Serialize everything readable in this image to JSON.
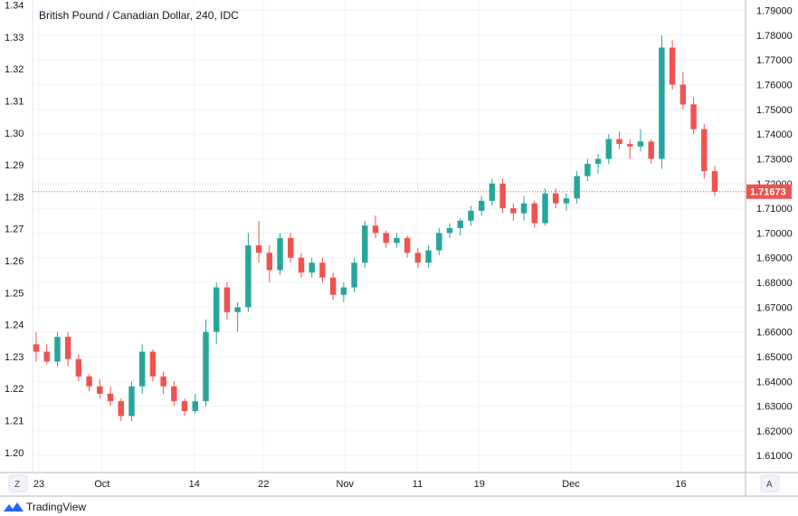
{
  "chart_data": {
    "type": "candlestick",
    "title": "British Pound / Canadian Dollar, 240, IDC",
    "x_tick_labels": [
      "23",
      "Oct",
      "14",
      "22",
      "Nov",
      "11",
      "19",
      "Dec",
      "16"
    ],
    "left_axis": {
      "ticks": [
        "1.34",
        "1.33",
        "1.32",
        "1.31",
        "1.30",
        "1.29",
        "1.28",
        "1.27",
        "1.26",
        "1.25",
        "1.24",
        "1.23",
        "1.22",
        "1.21",
        "1.20"
      ],
      "range": [
        1.194,
        1.341
      ]
    },
    "right_axis": {
      "ticks": [
        "1.79000",
        "1.78000",
        "1.77000",
        "1.76000",
        "1.75000",
        "1.74000",
        "1.73000",
        "1.72000",
        "1.71000",
        "1.70000",
        "1.69000",
        "1.68000",
        "1.67000",
        "1.66000",
        "1.65000",
        "1.64000",
        "1.63000",
        "1.62000",
        "1.61000"
      ],
      "range": [
        1.6035,
        1.7935
      ],
      "current_price": "1.71673"
    },
    "grid": true,
    "series": [
      {
        "values": [
          [
            1.655,
            1.66,
            1.648,
            1.652
          ],
          [
            1.652,
            1.655,
            1.647,
            1.648
          ],
          [
            1.648,
            1.66,
            1.646,
            1.658
          ],
          [
            1.658,
            1.66,
            1.646,
            1.649
          ],
          [
            1.649,
            1.651,
            1.64,
            1.642
          ],
          [
            1.642,
            1.643,
            1.636,
            1.638
          ],
          [
            1.638,
            1.641,
            1.633,
            1.635
          ],
          [
            1.635,
            1.638,
            1.63,
            1.632
          ],
          [
            1.632,
            1.633,
            1.624,
            1.626
          ],
          [
            1.626,
            1.64,
            1.624,
            1.638
          ],
          [
            1.638,
            1.655,
            1.635,
            1.652
          ],
          [
            1.652,
            1.653,
            1.64,
            1.642
          ],
          [
            1.642,
            1.644,
            1.635,
            1.638
          ],
          [
            1.638,
            1.64,
            1.63,
            1.632
          ],
          [
            1.632,
            1.633,
            1.626,
            1.628
          ],
          [
            1.628,
            1.635,
            1.627,
            1.632
          ],
          [
            1.632,
            1.665,
            1.63,
            1.66
          ],
          [
            1.66,
            1.68,
            1.655,
            1.678
          ],
          [
            1.678,
            1.68,
            1.665,
            1.668
          ],
          [
            1.668,
            1.672,
            1.66,
            1.67
          ],
          [
            1.67,
            1.7,
            1.668,
            1.695
          ],
          [
            1.695,
            1.705,
            1.688,
            1.692
          ],
          [
            1.692,
            1.695,
            1.68,
            1.685
          ],
          [
            1.685,
            1.7,
            1.683,
            1.698
          ],
          [
            1.698,
            1.7,
            1.688,
            1.69
          ],
          [
            1.69,
            1.692,
            1.682,
            1.684
          ],
          [
            1.684,
            1.69,
            1.682,
            1.688
          ],
          [
            1.688,
            1.69,
            1.68,
            1.682
          ],
          [
            1.682,
            1.684,
            1.673,
            1.675
          ],
          [
            1.675,
            1.68,
            1.672,
            1.678
          ],
          [
            1.678,
            1.69,
            1.676,
            1.688
          ],
          [
            1.688,
            1.705,
            1.686,
            1.703
          ],
          [
            1.703,
            1.707,
            1.698,
            1.7
          ],
          [
            1.7,
            1.701,
            1.694,
            1.696
          ],
          [
            1.696,
            1.7,
            1.694,
            1.698
          ],
          [
            1.698,
            1.699,
            1.69,
            1.692
          ],
          [
            1.692,
            1.694,
            1.686,
            1.688
          ],
          [
            1.688,
            1.695,
            1.686,
            1.693
          ],
          [
            1.693,
            1.702,
            1.691,
            1.7
          ],
          [
            1.7,
            1.704,
            1.698,
            1.702
          ],
          [
            1.702,
            1.706,
            1.699,
            1.705
          ],
          [
            1.705,
            1.711,
            1.703,
            1.709
          ],
          [
            1.709,
            1.715,
            1.707,
            1.713
          ],
          [
            1.713,
            1.722,
            1.711,
            1.72
          ],
          [
            1.72,
            1.722,
            1.708,
            1.71
          ],
          [
            1.71,
            1.712,
            1.705,
            1.708
          ],
          [
            1.708,
            1.715,
            1.705,
            1.712
          ],
          [
            1.712,
            1.713,
            1.702,
            1.704
          ],
          [
            1.704,
            1.718,
            1.703,
            1.716
          ],
          [
            1.716,
            1.718,
            1.71,
            1.712
          ],
          [
            1.712,
            1.716,
            1.709,
            1.714
          ],
          [
            1.714,
            1.725,
            1.712,
            1.723
          ],
          [
            1.723,
            1.73,
            1.721,
            1.728
          ],
          [
            1.728,
            1.732,
            1.724,
            1.73
          ],
          [
            1.73,
            1.74,
            1.728,
            1.738
          ],
          [
            1.738,
            1.741,
            1.734,
            1.736
          ],
          [
            1.736,
            1.738,
            1.73,
            1.735
          ],
          [
            1.735,
            1.742,
            1.733,
            1.737
          ],
          [
            1.737,
            1.738,
            1.728,
            1.73
          ],
          [
            1.73,
            1.78,
            1.726,
            1.775
          ],
          [
            1.775,
            1.778,
            1.758,
            1.76
          ],
          [
            1.76,
            1.765,
            1.75,
            1.752
          ],
          [
            1.752,
            1.755,
            1.74,
            1.742
          ],
          [
            1.742,
            1.744,
            1.722,
            1.725
          ],
          [
            1.725,
            1.727,
            1.715,
            1.7167
          ]
        ]
      }
    ]
  }
}
